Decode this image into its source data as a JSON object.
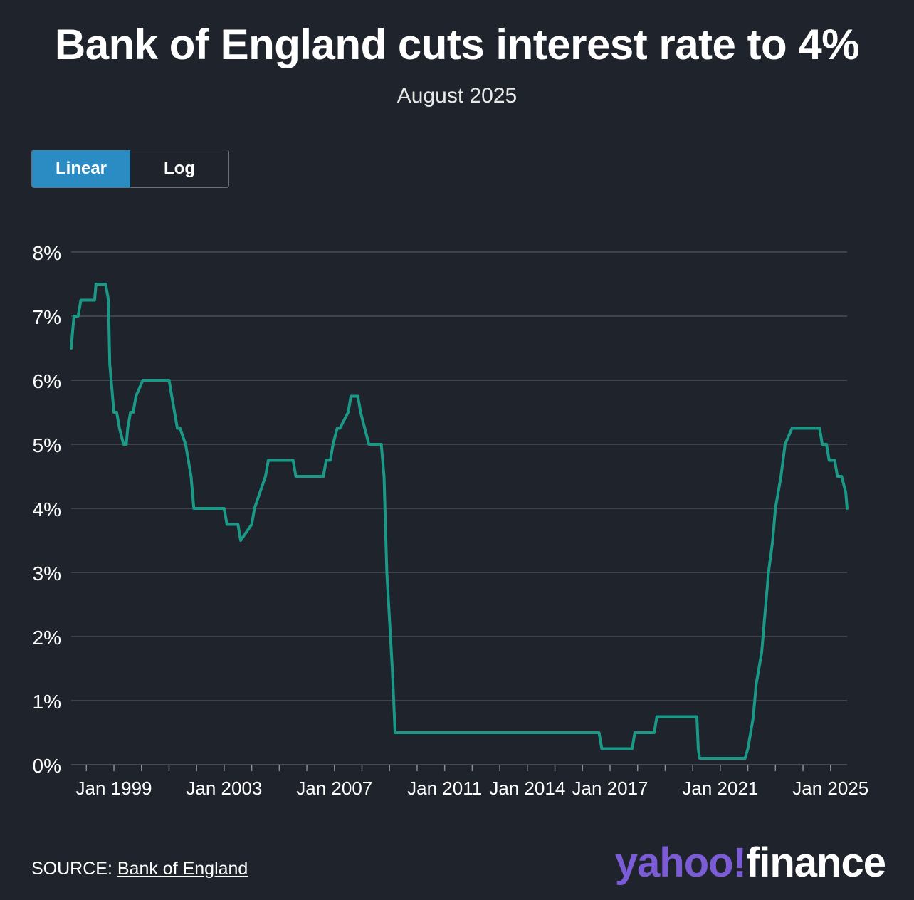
{
  "title": "Bank of England cuts interest rate to 4%",
  "subtitle": "August 2025",
  "toggle": {
    "linear_label": "Linear",
    "log_label": "Log",
    "active": "linear"
  },
  "source": {
    "prefix": "SOURCE: ",
    "link_text": "Bank of England"
  },
  "logo": {
    "yahoo": "yahoo",
    "bang": "!",
    "finance": "finance"
  },
  "colors": {
    "background": "#1f232b",
    "line": "#1a9987",
    "grid": "#4a4f58",
    "accent": "#2b8cc4",
    "brand": "#7b5cd6"
  },
  "chart_data": {
    "type": "line",
    "title": "",
    "xlabel": "",
    "ylabel": "",
    "grid": true,
    "ylim": [
      0,
      8
    ],
    "xlim": [
      1997.45,
      2025.6
    ],
    "y_ticks": [
      {
        "value": 0,
        "label": "0%"
      },
      {
        "value": 1,
        "label": "1%"
      },
      {
        "value": 2,
        "label": "2%"
      },
      {
        "value": 3,
        "label": "3%"
      },
      {
        "value": 4,
        "label": "4%"
      },
      {
        "value": 5,
        "label": "5%"
      },
      {
        "value": 6,
        "label": "6%"
      },
      {
        "value": 7,
        "label": "7%"
      },
      {
        "value": 8,
        "label": "8%"
      }
    ],
    "x_tick_labels": [
      {
        "value": 1999,
        "label": "Jan 1999"
      },
      {
        "value": 2003,
        "label": "Jan 2003"
      },
      {
        "value": 2007,
        "label": "Jan 2007"
      },
      {
        "value": 2011,
        "label": "Jan 2011"
      },
      {
        "value": 2014,
        "label": "Jan 2014"
      },
      {
        "value": 2017,
        "label": "Jan 2017"
      },
      {
        "value": 2021,
        "label": "Jan 2021"
      },
      {
        "value": 2025,
        "label": "Jan 2025"
      }
    ],
    "x_minor_ticks": [
      1998,
      2000,
      2001,
      2002,
      2004,
      2005,
      2006,
      2008,
      2009,
      2010,
      2012,
      2013,
      2015,
      2016,
      2018,
      2019,
      2020,
      2022,
      2023,
      2024
    ],
    "series": [
      {
        "x": [
          1997.45,
          1997.5,
          1997.55,
          1997.6,
          1997.7,
          1997.8,
          1997.85,
          1998.3,
          1998.35,
          1998.7,
          1998.8,
          1998.85,
          1999.0,
          1999.1,
          1999.2,
          1999.35,
          1999.45,
          1999.5,
          1999.6,
          1999.7,
          1999.8,
          2000.05,
          2000.1,
          2001.0,
          2001.1,
          2001.2,
          2001.3,
          2001.4,
          2001.6,
          2001.7,
          2001.8,
          2001.9,
          2003.0,
          2003.1,
          2003.5,
          2003.6,
          2004.0,
          2004.1,
          2004.3,
          2004.5,
          2004.6,
          2005.5,
          2005.6,
          2006.6,
          2006.7,
          2006.85,
          2006.95,
          2007.1,
          2007.2,
          2007.5,
          2007.6,
          2007.85,
          2007.95,
          2008.1,
          2008.25,
          2008.35,
          2008.7,
          2008.8,
          2008.9,
          2009.1,
          2009.2,
          2016.6,
          2016.7,
          2017.8,
          2017.9,
          2018.6,
          2018.7,
          2020.15,
          2020.2,
          2020.25,
          2021.9,
          2022.0,
          2022.1,
          2022.2,
          2022.3,
          2022.5,
          2022.6,
          2022.75,
          2022.9,
          2023.0,
          2023.2,
          2023.35,
          2023.6,
          2023.65,
          2024.6,
          2024.7,
          2024.85,
          2024.95,
          2025.15,
          2025.25,
          2025.4,
          2025.55,
          2025.6
        ],
        "y": [
          6.5,
          6.75,
          7.0,
          7.0,
          7.0,
          7.25,
          7.25,
          7.25,
          7.5,
          7.5,
          7.25,
          6.25,
          5.5,
          5.5,
          5.25,
          5.0,
          5.0,
          5.25,
          5.5,
          5.5,
          5.75,
          6.0,
          6.0,
          6.0,
          5.75,
          5.5,
          5.25,
          5.25,
          5.0,
          4.75,
          4.5,
          4.0,
          4.0,
          3.75,
          3.75,
          3.5,
          3.75,
          4.0,
          4.25,
          4.5,
          4.75,
          4.75,
          4.5,
          4.5,
          4.75,
          4.75,
          5.0,
          5.25,
          5.25,
          5.5,
          5.75,
          5.75,
          5.5,
          5.25,
          5.0,
          5.0,
          5.0,
          4.5,
          3.0,
          1.5,
          0.5,
          0.5,
          0.25,
          0.25,
          0.5,
          0.5,
          0.75,
          0.75,
          0.25,
          0.1,
          0.1,
          0.25,
          0.5,
          0.75,
          1.25,
          1.75,
          2.25,
          3.0,
          3.5,
          4.0,
          4.5,
          5.0,
          5.25,
          5.25,
          5.25,
          5.0,
          5.0,
          4.75,
          4.75,
          4.5,
          4.5,
          4.25,
          4.0
        ]
      }
    ]
  }
}
